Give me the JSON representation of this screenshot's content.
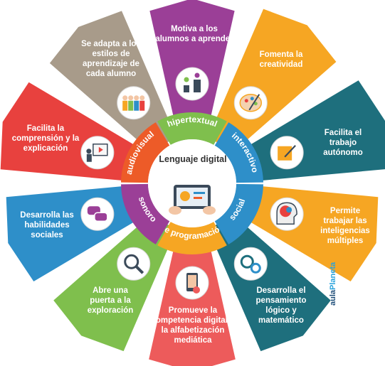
{
  "center": {
    "title": "Lenguaje digital"
  },
  "ring": [
    {
      "label": "hipertextual",
      "color": "#7fbf4d"
    },
    {
      "label": "interactivo",
      "color": "#2e8fc9"
    },
    {
      "label": "social",
      "color": "#2e8fc9"
    },
    {
      "label": "de programación",
      "color": "#f6a623"
    },
    {
      "label": "sonoro",
      "color": "#9b3f97"
    },
    {
      "label": "audiovisual",
      "color": "#ed5b28"
    }
  ],
  "petals": [
    {
      "id": "motiva",
      "text": "Motiva a los alumnos a aprender",
      "color": "#9b3f97",
      "icon": "climbing-people-icon"
    },
    {
      "id": "creatividad",
      "text": "Fomenta la creatividad",
      "color": "#f6a623",
      "icon": "paint-palette-icon"
    },
    {
      "id": "autonomo",
      "text": "Facilita el trabajo autónomo",
      "color": "#1e6f7d",
      "icon": "puzzle-pencil-icon"
    },
    {
      "id": "inteligencias",
      "text": "Permite trabajar las inteligencias múltiples",
      "color": "#f6a623",
      "icon": "brain-head-icon"
    },
    {
      "id": "pensamiento",
      "text": "Desarrolla el pensamiento lógico y matemático",
      "color": "#1e6f7d",
      "icon": "gears-head-icon"
    },
    {
      "id": "competencia",
      "text": "Promueve la competencia digital y la alfabetización mediática",
      "color": "#ed5b5b",
      "icon": "touch-phone-icon"
    },
    {
      "id": "exploracion",
      "text": "Abre una puerta a la exploración",
      "color": "#7fbf4d",
      "icon": "magnifier-icon"
    },
    {
      "id": "sociales",
      "text": "Desarrolla las habilidades sociales",
      "color": "#2e8fc9",
      "icon": "chat-bubbles-icon"
    },
    {
      "id": "comprension",
      "text": "Facilita la comprensión y la explicación",
      "color": "#e8413e",
      "icon": "presentation-board-icon"
    },
    {
      "id": "estilos",
      "text": "Se adapta a los estilos de aprendizaje de cada alumno",
      "color": "#a89b8a",
      "icon": "group-people-icon"
    }
  ],
  "brand": {
    "part1": "aula",
    "part2": "Planeta"
  }
}
